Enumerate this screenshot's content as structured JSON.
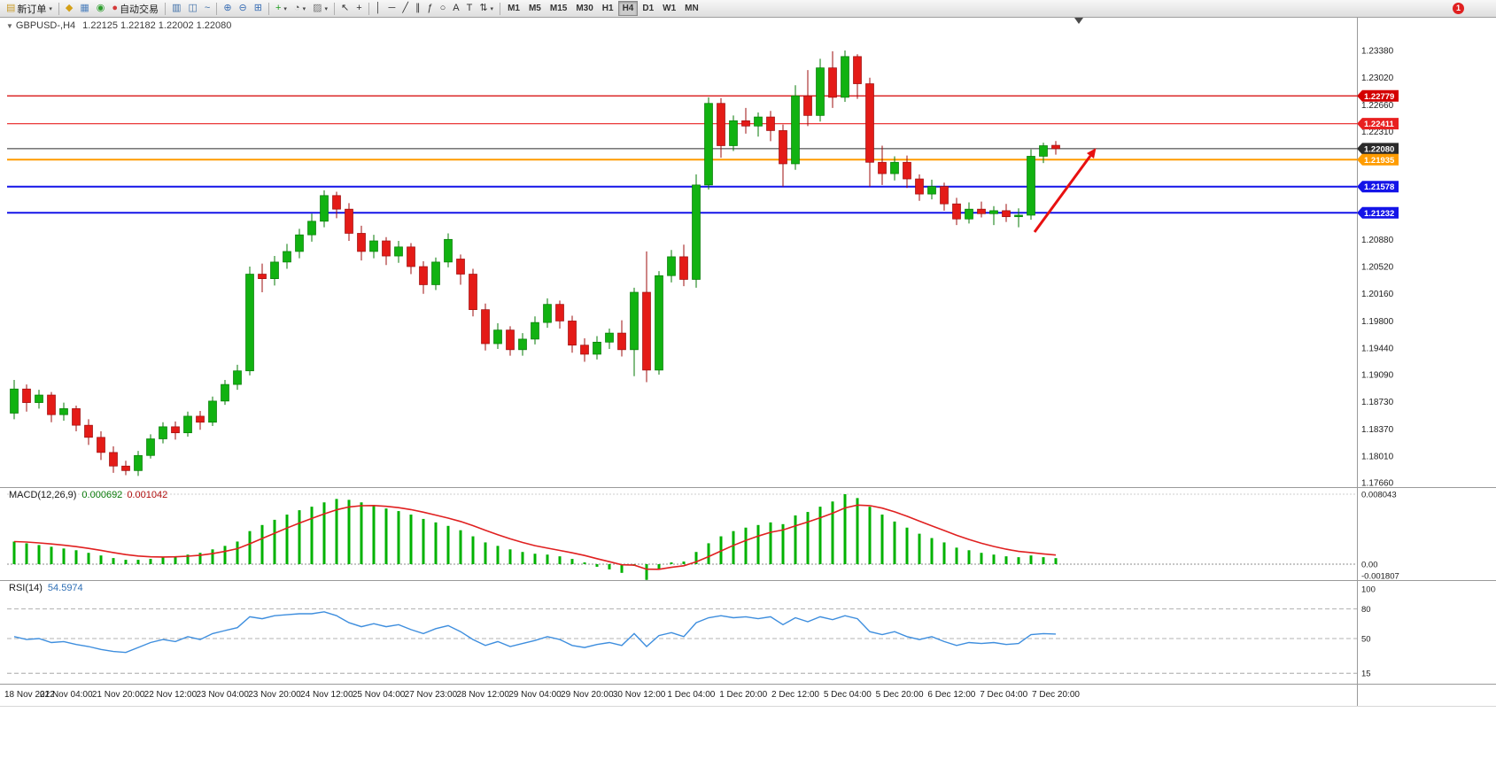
{
  "toolbar": {
    "notification_count": "1",
    "active_timeframe": "H4",
    "timeframes": [
      "M1",
      "M5",
      "M15",
      "M30",
      "H1",
      "H4",
      "D1",
      "W1",
      "MN"
    ],
    "groups": [
      {
        "buttons": [
          {
            "name": "new-order-button",
            "icon": "new-order-icon",
            "glyph": "▤",
            "glyph_color": "#c89b2a",
            "label": "新订单",
            "dropdown": true
          }
        ]
      },
      {
        "buttons": [
          {
            "name": "market-watch-button",
            "icon": "market-watch-icon",
            "glyph": "◆",
            "glyph_color": "#d4a017"
          },
          {
            "name": "data-window-button",
            "icon": "data-window-icon",
            "glyph": "▦",
            "glyph_color": "#4f81bd"
          },
          {
            "name": "sound-alerts-button",
            "icon": "sound-icon",
            "glyph": "◉",
            "glyph_color": "#2e9e2e"
          },
          {
            "name": "auto-trading-button",
            "icon": "autotrade-icon",
            "glyph": "●",
            "glyph_color": "#d43a3a",
            "label": "自动交易"
          }
        ]
      },
      {
        "buttons": [
          {
            "name": "bar-chart-button",
            "icon": "bar-chart-icon",
            "glyph": "▥",
            "glyph_color": "#3f6fa8"
          },
          {
            "name": "candlestick-chart-button",
            "icon": "candlestick-icon",
            "glyph": "◫",
            "glyph_color": "#3f6fa8"
          },
          {
            "name": "line-chart-button",
            "icon": "line-chart-icon",
            "glyph": "~",
            "glyph_color": "#3f6fa8"
          }
        ]
      },
      {
        "buttons": [
          {
            "name": "zoom-in-button",
            "icon": "zoom-in-icon",
            "glyph": "⊕",
            "glyph_color": "#3b6fb5"
          },
          {
            "name": "zoom-out-button",
            "icon": "zoom-out-icon",
            "glyph": "⊖",
            "glyph_color": "#3b6fb5"
          },
          {
            "name": "tile-windows-button",
            "icon": "tile-windows-icon",
            "glyph": "⊞",
            "glyph_color": "#3b6fb5"
          }
        ]
      },
      {
        "buttons": [
          {
            "name": "indicators-button",
            "icon": "indicators-icon",
            "glyph": "+",
            "glyph_color": "#1f9e1f",
            "dropdown": true
          },
          {
            "name": "periods-button",
            "icon": "periods-icon",
            "glyph": "◔",
            "glyph_color": "#555555",
            "dropdown": true
          },
          {
            "name": "templates-button",
            "icon": "template-icon",
            "glyph": "▨",
            "glyph_color": "#777777",
            "dropdown": true
          }
        ]
      },
      {
        "buttons": [
          {
            "name": "cursor-button",
            "icon": "cursor-icon",
            "glyph": "↖",
            "glyph_color": "#333333"
          },
          {
            "name": "crosshair-button",
            "icon": "crosshair-icon",
            "glyph": "+",
            "glyph_color": "#333333"
          }
        ]
      },
      {
        "buttons": [
          {
            "name": "vertical-line-button",
            "icon": "vertical-line-icon",
            "glyph": "│",
            "glyph_color": "#333333"
          },
          {
            "name": "horizontal-line-button",
            "icon": "horizontal-line-icon",
            "glyph": "─",
            "glyph_color": "#333333"
          },
          {
            "name": "trendline-button",
            "icon": "trendline-icon",
            "glyph": "╱",
            "glyph_color": "#333333"
          },
          {
            "name": "channel-button",
            "icon": "channel-icon",
            "glyph": "∥",
            "glyph_color": "#333333"
          },
          {
            "name": "fibonacci-button",
            "icon": "fibonacci-icon",
            "glyph": "ƒ",
            "glyph_color": "#333333"
          },
          {
            "name": "shapes-button",
            "icon": "shapes-icon",
            "glyph": "○",
            "glyph_color": "#333333"
          },
          {
            "name": "text-button",
            "icon": "text-icon",
            "glyph": "A",
            "glyph_color": "#333333"
          },
          {
            "name": "text-label-button",
            "icon": "text-label-icon",
            "glyph": "T",
            "glyph_color": "#333333"
          },
          {
            "name": "arrows-button",
            "icon": "arrows-icon",
            "glyph": "⇅",
            "glyph_color": "#333333",
            "dropdown": true
          }
        ]
      }
    ]
  },
  "chart": {
    "collapse_glyph": "▼",
    "symbol_label": "GBPUSD-,H4",
    "ohlc_display": "1.22125 1.22182 1.22002 1.22080",
    "price_axis": [
      "1.23380",
      "1.23020",
      "1.22660",
      "1.22310",
      "1.21950",
      "1.21590",
      "1.21230",
      "1.20880",
      "1.20520",
      "1.20160",
      "1.19800",
      "1.19440",
      "1.19090",
      "1.18730",
      "1.18370",
      "1.18010",
      "1.17660"
    ],
    "hlines": [
      {
        "price": 1.22779,
        "label": "1.22779",
        "color": "#d40000",
        "width": 1.2
      },
      {
        "price": 1.22411,
        "label": "1.22411",
        "color": "#e82020",
        "width": 1.2
      },
      {
        "price": 1.2208,
        "label": "1.22080",
        "color": "#2b2b2b",
        "width": 1
      },
      {
        "price": 1.21935,
        "label": "1.21935",
        "color": "#ff9c00",
        "width": 2
      },
      {
        "price": 1.21578,
        "label": "1.21578",
        "color": "#1414e8",
        "width": 2
      },
      {
        "price": 1.21232,
        "label": "1.21232",
        "color": "#1414e8",
        "width": 2
      }
    ],
    "annotations": [
      {
        "type": "arrow",
        "color": "#e81010",
        "from": [
          1168,
          262
        ],
        "to": [
          1231,
          176
        ]
      }
    ]
  },
  "macd": {
    "label": "MACD(12,26,9)",
    "value_main": "0.000692",
    "value_signal": "0.001042",
    "axis": [
      "0.008043",
      "0.00",
      "-0.001807"
    ],
    "colors": {
      "histogram": "#00b200",
      "signal": "#e02020"
    }
  },
  "rsi": {
    "label": "RSI(14)",
    "value": "54.5974",
    "axis": [
      "100",
      "80",
      "50",
      "15"
    ],
    "levels": [
      80,
      50,
      15
    ],
    "color": "#3e8ede"
  },
  "time_axis": [
    "18 Nov 2022",
    "21 Nov 04:00",
    "21 Nov 20:00",
    "22 Nov 12:00",
    "23 Nov 04:00",
    "23 Nov 20:00",
    "24 Nov 12:00",
    "25 Nov 04:00",
    "27 Nov 23:00",
    "28 Nov 12:00",
    "29 Nov 04:00",
    "29 Nov 20:00",
    "30 Nov 12:00",
    "1 Dec 04:00",
    "1 Dec 20:00",
    "2 Dec 12:00",
    "5 Dec 04:00",
    "5 Dec 20:00",
    "6 Dec 12:00",
    "7 Dec 04:00",
    "7 Dec 20:00"
  ],
  "chart_data": {
    "type": "candlestick",
    "title": "GBPUSD H4 with MACD(12,26,9) and RSI(14)",
    "symbol": "GBPUSD",
    "period": "H4",
    "price_range": {
      "axis_top": 1.2338,
      "axis_bottom": 1.1766
    },
    "colors": {
      "bull": "#11b211",
      "bull_border": "#067a06",
      "bear": "#e41b17",
      "bear_border": "#9c0d0d"
    },
    "candles": [
      [
        1.1858,
        1.1902,
        1.185,
        1.189
      ],
      [
        1.189,
        1.1896,
        1.186,
        1.1872
      ],
      [
        1.1872,
        1.1889,
        1.1864,
        1.1882
      ],
      [
        1.1882,
        1.1886,
        1.1846,
        1.1856
      ],
      [
        1.1856,
        1.1872,
        1.1848,
        1.1864
      ],
      [
        1.1864,
        1.1868,
        1.1834,
        1.1842
      ],
      [
        1.1842,
        1.185,
        1.1816,
        1.1826
      ],
      [
        1.1826,
        1.1834,
        1.1796,
        1.1806
      ],
      [
        1.1806,
        1.1814,
        1.1779,
        1.1788
      ],
      [
        1.1788,
        1.1795,
        1.1776,
        1.1782
      ],
      [
        1.1782,
        1.1808,
        1.1775,
        1.1802
      ],
      [
        1.1802,
        1.183,
        1.1798,
        1.1824
      ],
      [
        1.1824,
        1.1846,
        1.1818,
        1.184
      ],
      [
        1.184,
        1.1847,
        1.1823,
        1.1832
      ],
      [
        1.1832,
        1.186,
        1.1827,
        1.1854
      ],
      [
        1.1854,
        1.1861,
        1.1836,
        1.1846
      ],
      [
        1.1846,
        1.188,
        1.1841,
        1.1874
      ],
      [
        1.1874,
        1.1902,
        1.1869,
        1.1896
      ],
      [
        1.1896,
        1.1922,
        1.1889,
        1.1914
      ],
      [
        1.1914,
        1.2052,
        1.1908,
        1.2042
      ],
      [
        1.2042,
        1.2056,
        1.2018,
        1.2036
      ],
      [
        1.2036,
        1.2066,
        1.2027,
        1.2058
      ],
      [
        1.2058,
        1.2082,
        1.2049,
        1.2072
      ],
      [
        1.2072,
        1.2102,
        1.2063,
        1.2094
      ],
      [
        1.2094,
        1.2122,
        1.2085,
        1.2112
      ],
      [
        1.2112,
        1.2153,
        1.2104,
        1.2146
      ],
      [
        1.2146,
        1.2151,
        1.2116,
        1.2128
      ],
      [
        1.2128,
        1.2136,
        1.2086,
        1.2096
      ],
      [
        1.2096,
        1.2106,
        1.206,
        1.2072
      ],
      [
        1.2072,
        1.2094,
        1.2063,
        1.2086
      ],
      [
        1.2086,
        1.2091,
        1.2054,
        1.2066
      ],
      [
        1.2066,
        1.2086,
        1.2057,
        1.2078
      ],
      [
        1.2078,
        1.2083,
        1.2042,
        1.2052
      ],
      [
        1.2052,
        1.2059,
        1.2016,
        1.2028
      ],
      [
        1.2028,
        1.2064,
        1.2021,
        1.2058
      ],
      [
        1.2058,
        1.2096,
        1.2051,
        1.2088
      ],
      [
        1.2062,
        1.2068,
        1.2028,
        1.2042
      ],
      [
        1.2042,
        1.2049,
        1.1986,
        1.1995
      ],
      [
        1.1995,
        1.2003,
        1.1941,
        1.195
      ],
      [
        1.195,
        1.1977,
        1.1943,
        1.1968
      ],
      [
        1.1968,
        1.1973,
        1.1934,
        1.1942
      ],
      [
        1.1942,
        1.1964,
        1.1934,
        1.1956
      ],
      [
        1.1956,
        1.1986,
        1.1949,
        1.1978
      ],
      [
        1.1978,
        1.201,
        1.1971,
        1.2002
      ],
      [
        1.2002,
        1.2007,
        1.197,
        1.198
      ],
      [
        1.198,
        1.1987,
        1.1938,
        1.1948
      ],
      [
        1.1948,
        1.1957,
        1.1926,
        1.1936
      ],
      [
        1.1936,
        1.196,
        1.1929,
        1.1952
      ],
      [
        1.1952,
        1.197,
        1.1943,
        1.1964
      ],
      [
        1.1964,
        1.1981,
        1.1933,
        1.1942
      ],
      [
        1.1942,
        1.2024,
        1.1907,
        1.2018
      ],
      [
        1.2018,
        1.2072,
        1.1899,
        1.1915
      ],
      [
        1.1915,
        1.2046,
        1.1909,
        1.204
      ],
      [
        1.204,
        1.2074,
        1.2031,
        1.2065
      ],
      [
        1.2065,
        1.2081,
        1.2026,
        1.2035
      ],
      [
        1.2035,
        1.2174,
        1.2024,
        1.216
      ],
      [
        1.216,
        1.2276,
        1.2154,
        1.2268
      ],
      [
        1.2268,
        1.2275,
        1.2196,
        1.2212
      ],
      [
        1.2212,
        1.2252,
        1.2205,
        1.2245
      ],
      [
        1.2245,
        1.2262,
        1.2228,
        1.2238
      ],
      [
        1.2238,
        1.2256,
        1.2224,
        1.225
      ],
      [
        1.225,
        1.2258,
        1.2218,
        1.2232
      ],
      [
        1.2232,
        1.224,
        1.2158,
        1.2188
      ],
      [
        1.2188,
        1.2292,
        1.218,
        1.2278
      ],
      [
        1.2278,
        1.2312,
        1.2238,
        1.2252
      ],
      [
        1.2252,
        1.2327,
        1.2244,
        1.2315
      ],
      [
        1.2315,
        1.2337,
        1.2262,
        1.2276
      ],
      [
        1.2276,
        1.2338,
        1.227,
        1.233
      ],
      [
        1.233,
        1.2333,
        1.2274,
        1.2294
      ],
      [
        1.2294,
        1.2302,
        1.2158,
        1.219
      ],
      [
        1.219,
        1.2212,
        1.216,
        1.2175
      ],
      [
        1.2175,
        1.2198,
        1.2166,
        1.219
      ],
      [
        1.219,
        1.2199,
        1.2156,
        1.2168
      ],
      [
        1.2168,
        1.2174,
        1.2139,
        1.2148
      ],
      [
        1.2148,
        1.2167,
        1.2141,
        1.2158
      ],
      [
        1.2158,
        1.2163,
        1.2126,
        1.2135
      ],
      [
        1.2135,
        1.2143,
        1.2107,
        1.2115
      ],
      [
        1.2115,
        1.2137,
        1.2109,
        1.2128
      ],
      [
        1.2128,
        1.2138,
        1.2117,
        1.2122
      ],
      [
        1.2122,
        1.2132,
        1.2107,
        1.2126
      ],
      [
        1.2126,
        1.2135,
        1.2111,
        1.2118
      ],
      [
        1.2118,
        1.2129,
        1.2104,
        1.212
      ],
      [
        1.212,
        1.2207,
        1.2114,
        1.2198
      ],
      [
        1.2198,
        1.2216,
        1.2189,
        1.2212
      ],
      [
        1.22125,
        1.22182,
        1.22002,
        1.2208
      ]
    ],
    "macd_histogram": [
      0.0026,
      0.0024,
      0.0022,
      0.002,
      0.0018,
      0.0016,
      0.0013,
      0.001,
      0.0007,
      0.0005,
      0.0005,
      0.0006,
      0.0008,
      0.0009,
      0.0011,
      0.0013,
      0.0017,
      0.0021,
      0.0026,
      0.0038,
      0.0045,
      0.0051,
      0.0057,
      0.0062,
      0.0066,
      0.0071,
      0.0075,
      0.0074,
      0.0071,
      0.0068,
      0.0064,
      0.0061,
      0.0057,
      0.0052,
      0.0048,
      0.0044,
      0.0039,
      0.0032,
      0.0025,
      0.0021,
      0.0017,
      0.0014,
      0.0012,
      0.0011,
      0.0009,
      0.0006,
      0.0002,
      -0.0003,
      -0.0006,
      -0.001,
      -0.0002,
      -0.001807,
      -0.0006,
      0.0002,
      0.0003,
      0.0014,
      0.0024,
      0.0032,
      0.0038,
      0.0042,
      0.0045,
      0.0048,
      0.0046,
      0.0056,
      0.006,
      0.0066,
      0.0072,
      0.008043,
      0.0076,
      0.0066,
      0.0057,
      0.0049,
      0.0042,
      0.0035,
      0.003,
      0.0025,
      0.0019,
      0.0016,
      0.0013,
      0.0011,
      0.0009,
      0.0008,
      0.001,
      0.0008,
      0.000692
    ],
    "rsi_values": [
      52,
      49,
      50,
      46,
      47,
      44,
      42,
      39,
      37,
      36,
      41,
      46,
      49,
      47,
      52,
      49,
      55,
      58,
      61,
      72,
      70,
      73,
      74,
      75,
      75,
      77,
      73,
      66,
      62,
      65,
      62,
      64,
      59,
      55,
      60,
      63,
      57,
      49,
      43,
      47,
      42,
      45,
      48,
      52,
      49,
      43,
      41,
      44,
      46,
      43,
      55,
      42,
      53,
      56,
      52,
      66,
      71,
      73,
      71,
      72,
      70,
      72,
      64,
      71,
      67,
      72,
      69,
      73,
      70,
      57,
      54,
      57,
      52,
      49,
      52,
      47,
      43,
      46,
      45,
      46,
      44,
      45,
      54,
      55,
      54.5974
    ]
  }
}
